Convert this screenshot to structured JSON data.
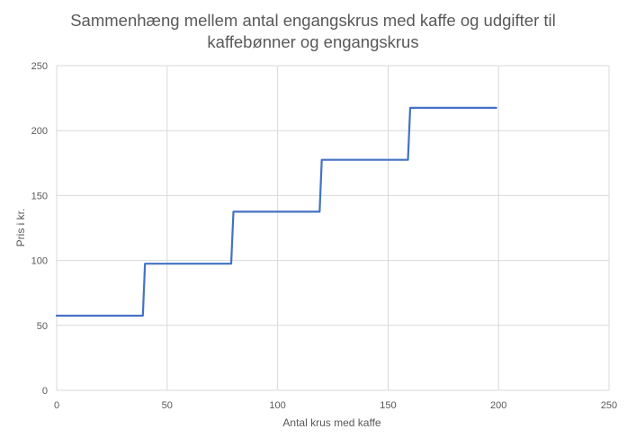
{
  "chart_data": {
    "type": "line",
    "title": "Sammenhæng mellem antal engangskrus med kaffe og udgifter til kaffebønner og engangskrus",
    "title_lines": [
      "Sammenhæng mellem antal engangskrus med kaffe og udgifter til",
      "kaffebønner og engangskrus"
    ],
    "xlabel": "Antal krus med kaffe",
    "ylabel": "Pris i kr.",
    "xlim": [
      0,
      250
    ],
    "ylim": [
      0,
      250
    ],
    "xticks": [
      0,
      50,
      100,
      150,
      200,
      250
    ],
    "yticks": [
      0,
      50,
      100,
      150,
      200,
      250
    ],
    "grid": true,
    "legend": "none",
    "series": [
      {
        "color": "#4472C4",
        "x": [
          0,
          39,
          40,
          79,
          80,
          119,
          120,
          159,
          160,
          199
        ],
        "y": [
          57.5,
          57.5,
          97.5,
          97.5,
          137.5,
          137.5,
          177.5,
          177.5,
          217.5,
          217.5
        ]
      }
    ],
    "colors": {
      "line": "#4472C4",
      "grid": "#D9D9D9",
      "text": "#595959"
    }
  }
}
